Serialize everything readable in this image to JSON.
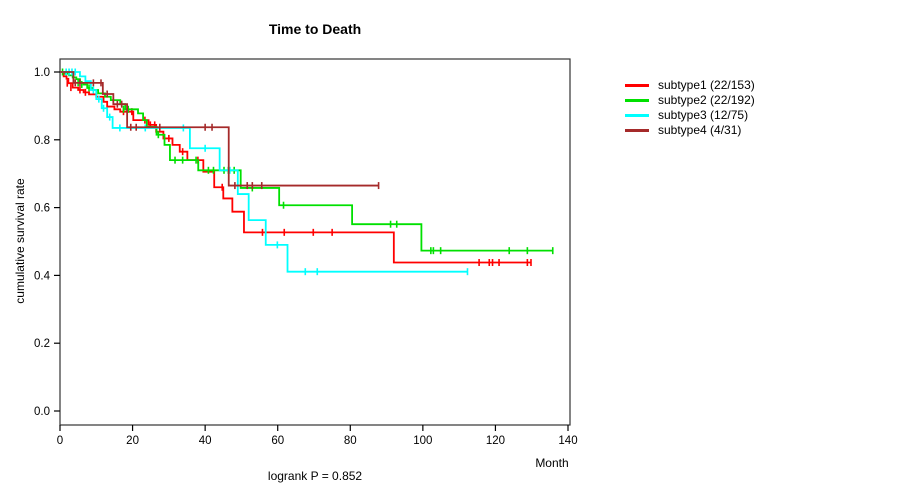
{
  "chart_data": {
    "type": "line",
    "subtype": "kaplan-meier-step-curves",
    "title": "Time to Death",
    "xlabel": "Month",
    "ylabel": "cumulative survival rate",
    "annotation": "logrank P = 0.852",
    "xlim": [
      0,
      140
    ],
    "ylim": [
      0.0,
      1.0
    ],
    "x_ticks": [
      0,
      20,
      40,
      60,
      80,
      100,
      120,
      140
    ],
    "y_ticks": [
      0.0,
      0.2,
      0.4,
      0.6,
      0.8,
      1.0
    ],
    "grid": false,
    "legend_position": "right",
    "frame_color": "#333333",
    "series": [
      {
        "name": "subtype1 (22/153)",
        "color": "#FF0000",
        "start": [
          0,
          1.0
        ],
        "steps": [
          [
            1,
            0.987
          ],
          [
            1.8,
            0.98
          ],
          [
            2.3,
            0.967
          ],
          [
            3.5,
            0.954
          ],
          [
            5,
            0.947
          ],
          [
            6.5,
            0.94
          ],
          [
            8,
            0.934
          ],
          [
            10,
            0.927
          ],
          [
            12,
            0.912
          ],
          [
            13,
            0.898
          ],
          [
            15,
            0.89
          ],
          [
            16.6,
            0.883
          ],
          [
            20.2,
            0.858
          ],
          [
            24.4,
            0.844
          ],
          [
            26.5,
            0.824
          ],
          [
            28.5,
            0.804
          ],
          [
            31,
            0.785
          ],
          [
            33,
            0.765
          ],
          [
            35.1,
            0.74
          ],
          [
            39.5,
            0.706
          ],
          [
            42.5,
            0.66
          ],
          [
            45,
            0.627
          ],
          [
            47.5,
            0.588
          ],
          [
            50.7,
            0.527
          ],
          [
            92,
            0.438
          ]
        ],
        "end_month": 129.8,
        "censor_marks": [
          [
            2,
            0.967
          ],
          [
            3,
            0.954
          ],
          [
            5.5,
            0.947
          ],
          [
            7,
            0.94
          ],
          [
            17.5,
            0.883
          ],
          [
            19.8,
            0.883
          ],
          [
            23.4,
            0.858
          ],
          [
            24.9,
            0.844
          ],
          [
            26.1,
            0.844
          ],
          [
            30,
            0.804
          ],
          [
            33.8,
            0.765
          ],
          [
            38,
            0.74
          ],
          [
            44.7,
            0.66
          ],
          [
            55.8,
            0.527
          ],
          [
            61.8,
            0.527
          ],
          [
            69.8,
            0.527
          ],
          [
            75,
            0.527
          ],
          [
            115.5,
            0.438
          ],
          [
            118.3,
            0.438
          ],
          [
            119.2,
            0.438
          ],
          [
            121,
            0.438
          ],
          [
            128.8,
            0.438
          ],
          [
            129.8,
            0.438
          ]
        ]
      },
      {
        "name": "subtype2 (22/192)",
        "color": "#00E000",
        "start": [
          0,
          1.0
        ],
        "steps": [
          [
            1.5,
            0.995
          ],
          [
            2.5,
            0.99
          ],
          [
            3.5,
            0.984
          ],
          [
            4.5,
            0.979
          ],
          [
            5.5,
            0.968
          ],
          [
            6.5,
            0.963
          ],
          [
            7.5,
            0.953
          ],
          [
            9,
            0.947
          ],
          [
            10.5,
            0.937
          ],
          [
            12.4,
            0.927
          ],
          [
            14,
            0.917
          ],
          [
            16.6,
            0.905
          ],
          [
            18,
            0.89
          ],
          [
            21.5,
            0.878
          ],
          [
            22.9,
            0.858
          ],
          [
            23.9,
            0.838
          ],
          [
            26.6,
            0.815
          ],
          [
            28.8,
            0.785
          ],
          [
            30.3,
            0.74
          ],
          [
            38.1,
            0.71
          ],
          [
            49.8,
            0.658
          ],
          [
            60.4,
            0.607
          ],
          [
            80.5,
            0.551
          ],
          [
            99.6,
            0.473
          ]
        ],
        "end_month": 135.8,
        "censor_marks": [
          [
            0.7,
            1.0
          ],
          [
            5,
            0.968
          ],
          [
            6,
            0.963
          ],
          [
            8,
            0.953
          ],
          [
            17.5,
            0.89
          ],
          [
            18.8,
            0.89
          ],
          [
            27.1,
            0.815
          ],
          [
            31.7,
            0.74
          ],
          [
            33.8,
            0.74
          ],
          [
            37.5,
            0.74
          ],
          [
            40.9,
            0.71
          ],
          [
            42.3,
            0.71
          ],
          [
            45.2,
            0.71
          ],
          [
            46.4,
            0.71
          ],
          [
            48,
            0.71
          ],
          [
            53,
            0.658
          ],
          [
            61.6,
            0.607
          ],
          [
            91.1,
            0.551
          ],
          [
            92.8,
            0.551
          ],
          [
            102.2,
            0.473
          ],
          [
            102.9,
            0.473
          ],
          [
            104.9,
            0.473
          ],
          [
            123.8,
            0.473
          ],
          [
            128.8,
            0.473
          ],
          [
            135.8,
            0.473
          ]
        ]
      },
      {
        "name": "subtype3 (12/75)",
        "color": "#00FFFF",
        "start": [
          0,
          1.0
        ],
        "steps": [
          [
            5.5,
            0.987
          ],
          [
            7,
            0.973
          ],
          [
            8.5,
            0.947
          ],
          [
            10,
            0.92
          ],
          [
            11.5,
            0.893
          ],
          [
            13,
            0.867
          ],
          [
            14.5,
            0.835
          ],
          [
            35.8,
            0.775
          ],
          [
            44,
            0.71
          ],
          [
            49,
            0.64
          ],
          [
            52,
            0.563
          ],
          [
            56.7,
            0.49
          ],
          [
            62.7,
            0.411
          ]
        ],
        "end_month": 112.3,
        "censor_marks": [
          [
            1.7,
            1.0
          ],
          [
            2.5,
            1.0
          ],
          [
            3.3,
            1.0
          ],
          [
            4.2,
            1.0
          ],
          [
            9.2,
            0.947
          ],
          [
            10.7,
            0.92
          ],
          [
            12,
            0.893
          ],
          [
            13.7,
            0.867
          ],
          [
            16.5,
            0.835
          ],
          [
            23.5,
            0.835
          ],
          [
            34,
            0.835
          ],
          [
            40,
            0.775
          ],
          [
            46.8,
            0.71
          ],
          [
            59.9,
            0.49
          ],
          [
            67.6,
            0.411
          ],
          [
            70.9,
            0.411
          ],
          [
            112.3,
            0.411
          ]
        ]
      },
      {
        "name": "subtype4 (4/31)",
        "color": "#A52A2A",
        "start": [
          0,
          1.0
        ],
        "steps": [
          [
            3.7,
            0.968
          ],
          [
            11.8,
            0.935
          ],
          [
            14.7,
            0.905
          ],
          [
            18.5,
            0.837
          ],
          [
            46.5,
            0.665
          ]
        ],
        "end_month": 87.8,
        "censor_marks": [
          [
            4.2,
            0.968
          ],
          [
            5.5,
            0.968
          ],
          [
            9.2,
            0.968
          ],
          [
            11.3,
            0.968
          ],
          [
            13,
            0.935
          ],
          [
            15.8,
            0.905
          ],
          [
            17,
            0.905
          ],
          [
            19.5,
            0.837
          ],
          [
            21,
            0.837
          ],
          [
            27.5,
            0.837
          ],
          [
            40,
            0.837
          ],
          [
            41.9,
            0.837
          ],
          [
            48.2,
            0.665
          ],
          [
            51.6,
            0.665
          ],
          [
            53,
            0.665
          ],
          [
            55.6,
            0.665
          ],
          [
            87.8,
            0.665
          ]
        ]
      }
    ]
  }
}
